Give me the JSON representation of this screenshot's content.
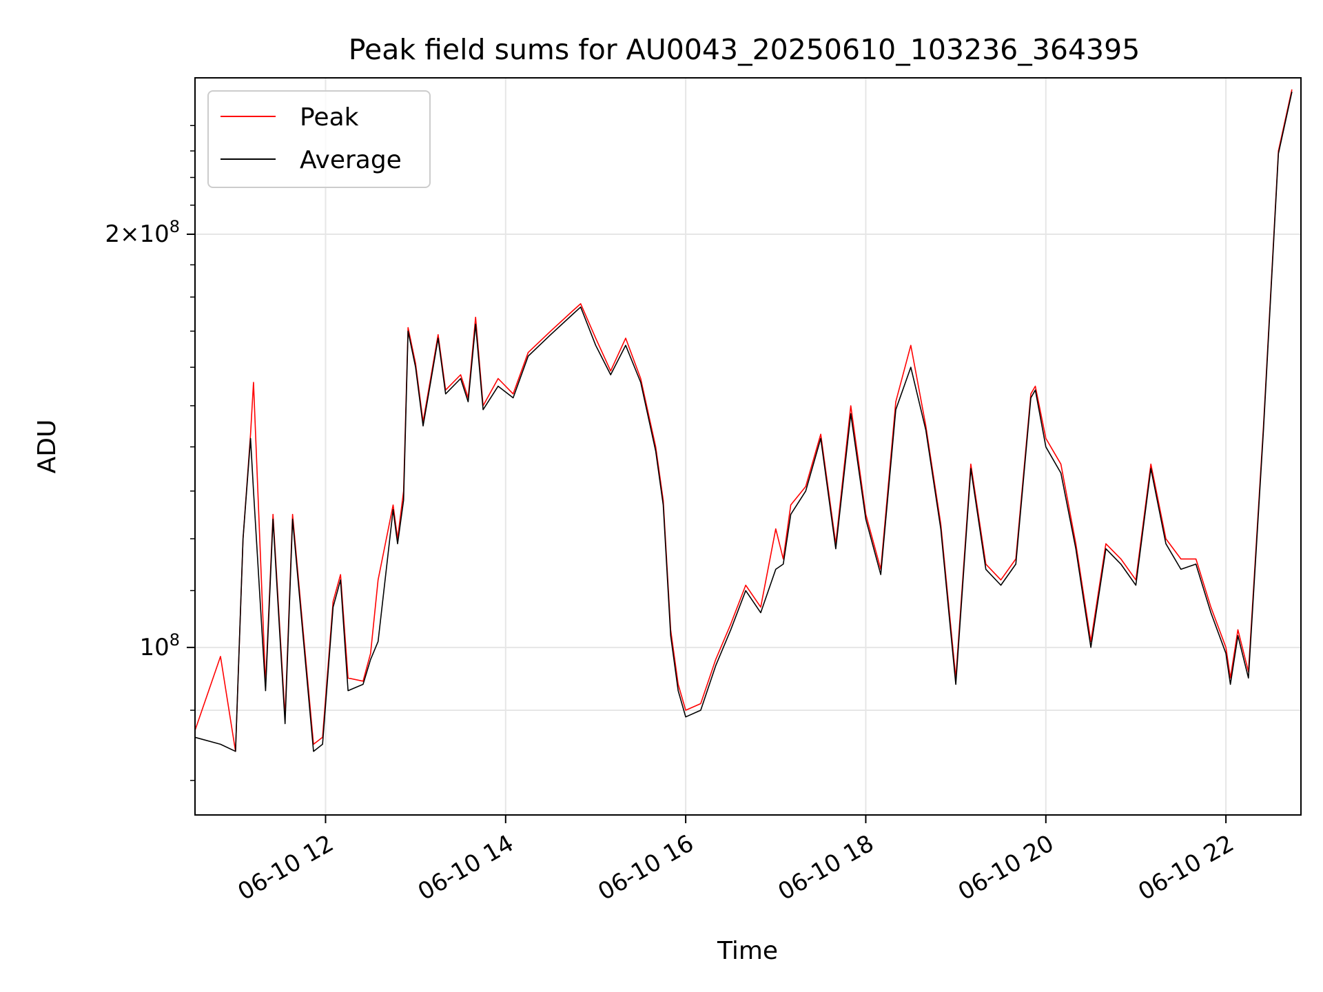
{
  "chart_data": {
    "type": "line",
    "title": "Peak field sums for AU0043_20250610_103236_364395",
    "xlabel": "Time",
    "ylabel": "ADU",
    "x_scale": "time",
    "y_scale": "log",
    "xlim": [
      "06-10 10:33",
      "06-10 22:50"
    ],
    "ylim": [
      75500000,
      260000000
    ],
    "x_ticks": [
      "06-10 12",
      "06-10 14",
      "06-10 16",
      "06-10 18",
      "06-10 20",
      "06-10 22"
    ],
    "y_tick_labels": [
      "10^8",
      "2×10^8"
    ],
    "y_ticks": [
      100000000,
      200000000
    ],
    "grid": true,
    "legend_position": "upper-left",
    "series": [
      {
        "name": "Peak",
        "color": "#ff0000",
        "x": [
          "06-10 10:33",
          "06-10 10:50",
          "06-10 11:00",
          "06-10 11:05",
          "06-10 11:10",
          "06-10 11:12",
          "06-10 11:20",
          "06-10 11:25",
          "06-10 11:33",
          "06-10 11:38",
          "06-10 11:45",
          "06-10 11:52",
          "06-10 11:58",
          "06-10 12:05",
          "06-10 12:10",
          "06-10 12:15",
          "06-10 12:25",
          "06-10 12:30",
          "06-10 12:35",
          "06-10 12:45",
          "06-10 12:48",
          "06-10 12:52",
          "06-10 12:55",
          "06-10 13:00",
          "06-10 13:05",
          "06-10 13:10",
          "06-10 13:15",
          "06-10 13:20",
          "06-10 13:30",
          "06-10 13:35",
          "06-10 13:40",
          "06-10 13:45",
          "06-10 13:55",
          "06-10 14:05",
          "06-10 14:15",
          "06-10 14:30",
          "06-10 14:45",
          "06-10 14:50",
          "06-10 15:00",
          "06-10 15:10",
          "06-10 15:20",
          "06-10 15:30",
          "06-10 15:40",
          "06-10 15:45",
          "06-10 15:50",
          "06-10 15:55",
          "06-10 16:00",
          "06-10 16:10",
          "06-10 16:20",
          "06-10 16:30",
          "06-10 16:40",
          "06-10 16:50",
          "06-10 17:00",
          "06-10 17:05",
          "06-10 17:10",
          "06-10 17:20",
          "06-10 17:30",
          "06-10 17:40",
          "06-10 17:50",
          "06-10 18:00",
          "06-10 18:10",
          "06-10 18:20",
          "06-10 18:30",
          "06-10 18:40",
          "06-10 18:50",
          "06-10 19:00",
          "06-10 19:10",
          "06-10 19:20",
          "06-10 19:30",
          "06-10 19:40",
          "06-10 19:50",
          "06-10 19:53",
          "06-10 20:00",
          "06-10 20:10",
          "06-10 20:20",
          "06-10 20:30",
          "06-10 20:40",
          "06-10 20:50",
          "06-10 21:00",
          "06-10 21:10",
          "06-10 21:20",
          "06-10 21:30",
          "06-10 21:40",
          "06-10 21:50",
          "06-10 22:00",
          "06-10 22:03",
          "06-10 22:08",
          "06-10 22:15",
          "06-10 22:25",
          "06-10 22:35",
          "06-10 22:44"
        ],
        "values": [
          87000000,
          98500000,
          84000000,
          120000000,
          143000000,
          156000000,
          94000000,
          125000000,
          89000000,
          125000000,
          103000000,
          85000000,
          86000000,
          108000000,
          113000000,
          95000000,
          94500000,
          99000000,
          112000000,
          127000000,
          120000000,
          130000000,
          171000000,
          161000000,
          146000000,
          157000000,
          169000000,
          154000000,
          158000000,
          152000000,
          174000000,
          150000000,
          157000000,
          153000000,
          164000000,
          170000000,
          176000000,
          178000000,
          168000000,
          159000000,
          168000000,
          157000000,
          140000000,
          128000000,
          103000000,
          94000000,
          90000000,
          91000000,
          98000000,
          104000000,
          111000000,
          107000000,
          122000000,
          116000000,
          127000000,
          131000000,
          143000000,
          119000000,
          150000000,
          125000000,
          114000000,
          151000000,
          166000000,
          145000000,
          123000000,
          95000000,
          136000000,
          115000000,
          112000000,
          116000000,
          153000000,
          155000000,
          142000000,
          136000000,
          119000000,
          101000000,
          119000000,
          116000000,
          112000000,
          136000000,
          120000000,
          116000000,
          116000000,
          107000000,
          100000000,
          95000000,
          103000000,
          96000000,
          145000000,
          230000000,
          255000000
        ]
      },
      {
        "name": "Average",
        "color": "#000000",
        "x": [
          "06-10 10:33",
          "06-10 10:50",
          "06-10 11:00",
          "06-10 11:05",
          "06-10 11:10",
          "06-10 11:12",
          "06-10 11:20",
          "06-10 11:25",
          "06-10 11:33",
          "06-10 11:38",
          "06-10 11:45",
          "06-10 11:52",
          "06-10 11:58",
          "06-10 12:05",
          "06-10 12:10",
          "06-10 12:15",
          "06-10 12:25",
          "06-10 12:30",
          "06-10 12:35",
          "06-10 12:45",
          "06-10 12:48",
          "06-10 12:52",
          "06-10 12:55",
          "06-10 13:00",
          "06-10 13:05",
          "06-10 13:10",
          "06-10 13:15",
          "06-10 13:20",
          "06-10 13:30",
          "06-10 13:35",
          "06-10 13:40",
          "06-10 13:45",
          "06-10 13:55",
          "06-10 14:05",
          "06-10 14:15",
          "06-10 14:30",
          "06-10 14:45",
          "06-10 14:50",
          "06-10 15:00",
          "06-10 15:10",
          "06-10 15:20",
          "06-10 15:30",
          "06-10 15:40",
          "06-10 15:45",
          "06-10 15:50",
          "06-10 15:55",
          "06-10 16:00",
          "06-10 16:10",
          "06-10 16:20",
          "06-10 16:30",
          "06-10 16:40",
          "06-10 16:50",
          "06-10 17:00",
          "06-10 17:05",
          "06-10 17:10",
          "06-10 17:20",
          "06-10 17:30",
          "06-10 17:40",
          "06-10 17:50",
          "06-10 18:00",
          "06-10 18:10",
          "06-10 18:20",
          "06-10 18:30",
          "06-10 18:40",
          "06-10 18:50",
          "06-10 19:00",
          "06-10 19:10",
          "06-10 19:20",
          "06-10 19:30",
          "06-10 19:40",
          "06-10 19:50",
          "06-10 19:53",
          "06-10 20:00",
          "06-10 20:10",
          "06-10 20:20",
          "06-10 20:30",
          "06-10 20:40",
          "06-10 20:50",
          "06-10 21:00",
          "06-10 21:10",
          "06-10 21:20",
          "06-10 21:30",
          "06-10 21:40",
          "06-10 21:50",
          "06-10 22:00",
          "06-10 22:03",
          "06-10 22:08",
          "06-10 22:15",
          "06-10 22:25",
          "06-10 22:35",
          "06-10 22:44"
        ],
        "values": [
          86000000,
          85000000,
          84000000,
          120000000,
          142000000,
          130000000,
          93000000,
          124000000,
          88000000,
          124000000,
          102000000,
          84000000,
          85000000,
          107000000,
          112000000,
          93000000,
          94000000,
          98000000,
          101000000,
          126000000,
          119000000,
          128000000,
          170000000,
          160000000,
          145000000,
          156000000,
          168000000,
          153000000,
          157000000,
          151000000,
          172000000,
          149000000,
          155000000,
          152000000,
          163000000,
          169000000,
          175000000,
          177000000,
          166000000,
          158000000,
          166000000,
          156000000,
          139000000,
          127000000,
          102000000,
          93000000,
          89000000,
          90000000,
          97000000,
          103000000,
          110000000,
          106000000,
          114000000,
          115000000,
          125000000,
          130000000,
          142000000,
          118000000,
          148000000,
          124000000,
          113000000,
          149000000,
          160000000,
          144000000,
          122000000,
          94000000,
          135000000,
          114000000,
          111000000,
          115000000,
          152000000,
          154000000,
          140000000,
          134000000,
          118000000,
          100000000,
          118000000,
          115000000,
          111000000,
          135000000,
          119000000,
          114000000,
          115000000,
          106000000,
          99000000,
          94000000,
          102000000,
          95000000,
          144000000,
          229000000,
          254000000
        ]
      }
    ]
  }
}
